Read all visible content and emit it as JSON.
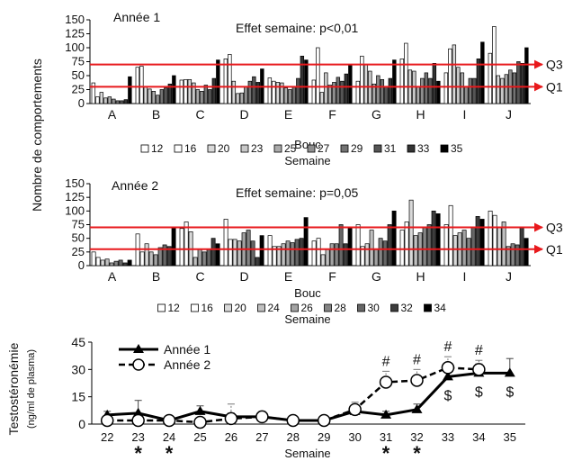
{
  "y_axis_title": "Nombre de comportements",
  "chart_data": [
    {
      "type": "bar",
      "title": "Année 1",
      "annotation": "Effet semaine: p<0,01",
      "xlabel": "Bouc",
      "legend_title": "Semaine",
      "ylim": [
        0,
        150
      ],
      "yticks": [
        0,
        25,
        50,
        75,
        100,
        125,
        150
      ],
      "categories": [
        "A",
        "B",
        "C",
        "D",
        "E",
        "F",
        "G",
        "H",
        "I",
        "J"
      ],
      "weeks": [
        "12",
        "16",
        "20",
        "23",
        "25",
        "27",
        "29",
        "31",
        "33",
        "35"
      ],
      "colors": [
        "#ffffff",
        "#ffffff",
        "#d9d9d9",
        "#c8c8c8",
        "#ababab",
        "#8f8f8f",
        "#737373",
        "#555555",
        "#333333",
        "#000000"
      ],
      "groups": [
        [
          37,
          12,
          20,
          10,
          12,
          8,
          5,
          5,
          7,
          48
        ],
        [
          65,
          67,
          30,
          26,
          22,
          15,
          25,
          28,
          35,
          50
        ],
        [
          42,
          43,
          43,
          37,
          25,
          22,
          33,
          25,
          45,
          78
        ],
        [
          80,
          88,
          40,
          18,
          19,
          30,
          40,
          48,
          38,
          62
        ],
        [
          46,
          40,
          38,
          37,
          28,
          25,
          30,
          45,
          85,
          78
        ],
        [
          42,
          100,
          20,
          55,
          33,
          38,
          47,
          40,
          53,
          68
        ],
        [
          40,
          85,
          70,
          58,
          35,
          50,
          43,
          30,
          45,
          78
        ],
        [
          80,
          108,
          60,
          58,
          30,
          45,
          55,
          45,
          72,
          40
        ],
        [
          55,
          98,
          105,
          65,
          55,
          30,
          45,
          45,
          80,
          110
        ],
        [
          90,
          138,
          50,
          45,
          52,
          60,
          55,
          75,
          72,
          100
        ]
      ],
      "reference_lines": [
        {
          "label": "Q3",
          "value": 70
        },
        {
          "label": "Q1",
          "value": 30
        }
      ]
    },
    {
      "type": "bar",
      "title": "Année 2",
      "annotation": "Effet semaine: p=0,05",
      "xlabel": "Bouc",
      "legend_title": "Semaine",
      "ylim": [
        0,
        150
      ],
      "yticks": [
        0,
        25,
        50,
        75,
        100,
        125,
        150
      ],
      "categories": [
        "A",
        "B",
        "C",
        "D",
        "E",
        "F",
        "G",
        "H",
        "I",
        "J"
      ],
      "weeks": [
        "12",
        "16",
        "20",
        "24",
        "26",
        "28",
        "30",
        "32",
        "34"
      ],
      "colors": [
        "#ffffff",
        "#ffffff",
        "#d9d9d9",
        "#c0c0c0",
        "#a3a3a3",
        "#858585",
        "#666666",
        "#3d3d3d",
        "#000000"
      ],
      "groups": [
        [
          25,
          15,
          10,
          12,
          5,
          8,
          10,
          5,
          10
        ],
        [
          58,
          25,
          40,
          25,
          20,
          33,
          38,
          35,
          68
        ],
        [
          68,
          80,
          62,
          15,
          30,
          25,
          30,
          50,
          40
        ],
        [
          85,
          48,
          48,
          45,
          60,
          65,
          45,
          15,
          55
        ],
        [
          55,
          35,
          35,
          40,
          45,
          42,
          48,
          50,
          88
        ],
        [
          45,
          50,
          20,
          30,
          40,
          40,
          75,
          40,
          70
        ],
        [
          75,
          35,
          40,
          65,
          30,
          50,
          45,
          75,
          100
        ],
        [
          65,
          80,
          120,
          55,
          60,
          70,
          75,
          100,
          95
        ],
        [
          75,
          110,
          55,
          60,
          65,
          50,
          70,
          90,
          85
        ],
        [
          100,
          92,
          70,
          80,
          35,
          40,
          38,
          70,
          50
        ]
      ],
      "reference_lines": [
        {
          "label": "Q3",
          "value": 70
        },
        {
          "label": "Q1",
          "value": 30
        }
      ]
    },
    {
      "type": "line",
      "ylabel": "Testostéronémie",
      "ylabel_unit": "(ng/ml de plasma)",
      "xlabel": "Semaine",
      "x": [
        22,
        23,
        24,
        25,
        26,
        27,
        28,
        29,
        30,
        31,
        32,
        33,
        34,
        35
      ],
      "ylim": [
        0,
        45
      ],
      "yticks": [
        0,
        15,
        30,
        45
      ],
      "series": [
        {
          "name": "Année 1",
          "values": [
            5,
            6,
            2,
            7,
            4,
            4,
            2,
            2,
            7,
            5,
            8,
            26,
            28,
            28
          ],
          "errors": [
            2,
            7,
            1,
            3,
            2,
            2,
            1,
            1,
            3,
            2,
            3,
            4,
            5,
            8
          ]
        },
        {
          "name": "Année 2",
          "values": [
            2,
            2,
            2,
            1,
            3,
            4,
            2,
            2,
            8,
            23,
            24,
            31,
            30,
            null
          ],
          "errors": [
            2,
            3,
            1,
            2,
            8,
            3,
            1,
            2,
            4,
            6,
            6,
            6,
            5,
            null
          ]
        }
      ],
      "markers_hash": [
        31,
        32,
        33,
        34
      ],
      "hash_symbol": "#",
      "markers_dollar": [
        33,
        34,
        35
      ],
      "dollar_symbol": "$",
      "markers_star": [
        23,
        24,
        31,
        32
      ],
      "star_symbol": "*"
    }
  ]
}
